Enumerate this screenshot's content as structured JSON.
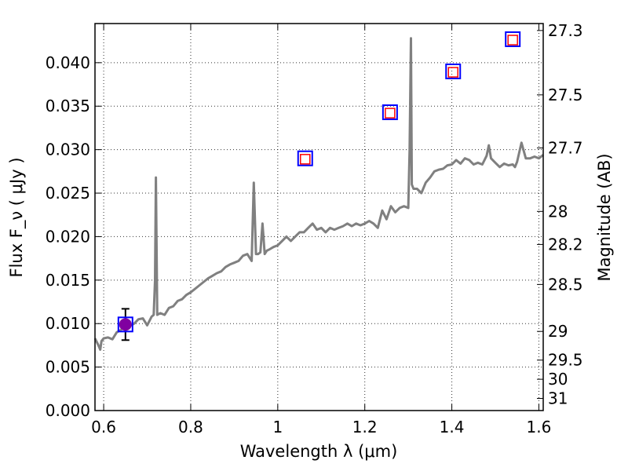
{
  "chart_data": {
    "type": "line",
    "title": "",
    "xlabel": "Wavelength  λ (μm)",
    "ylabel": "Flux  F_ν  ( μJy )",
    "y2label": "Magnitude (AB)",
    "xlim": [
      0.58,
      1.61
    ],
    "ylim": [
      0.0,
      0.0445
    ],
    "grid": true,
    "x_ticks": [
      0.6,
      0.8,
      1.0,
      1.2,
      1.4,
      1.6
    ],
    "x_tick_labels": [
      "0.6",
      "0.8",
      "1",
      "1.2",
      "1.4",
      "1.6"
    ],
    "y_ticks": [
      0.0,
      0.005,
      0.01,
      0.015,
      0.02,
      0.025,
      0.03,
      0.035,
      0.04
    ],
    "y_tick_labels": [
      "0.000",
      "0.005",
      "0.010",
      "0.015",
      "0.020",
      "0.025",
      "0.030",
      "0.035",
      "0.040"
    ],
    "y2_ticks": [
      {
        "label": "27.3",
        "flux": 0.0437
      },
      {
        "label": "27.5",
        "flux": 0.0363
      },
      {
        "label": "27.7",
        "flux": 0.0302
      },
      {
        "label": "28",
        "flux": 0.0229
      },
      {
        "label": "28.2",
        "flux": 0.0191
      },
      {
        "label": "28.5",
        "flux": 0.0145
      },
      {
        "label": "29",
        "flux": 0.0091
      },
      {
        "label": "29.5",
        "flux": 0.0058
      },
      {
        "label": "30",
        "flux": 0.0036
      },
      {
        "label": "31",
        "flux": 0.0014
      }
    ],
    "series": [
      {
        "type": "line",
        "color": "#808080",
        "x": [
          0.58,
          0.588,
          0.592,
          0.595,
          0.6,
          0.61,
          0.62,
          0.63,
          0.64,
          0.65,
          0.66,
          0.67,
          0.68,
          0.69,
          0.7,
          0.71,
          0.715,
          0.718,
          0.72,
          0.723,
          0.73,
          0.74,
          0.75,
          0.76,
          0.77,
          0.78,
          0.79,
          0.8,
          0.81,
          0.82,
          0.83,
          0.84,
          0.85,
          0.86,
          0.87,
          0.88,
          0.89,
          0.9,
          0.91,
          0.92,
          0.93,
          0.94,
          0.945,
          0.95,
          0.955,
          0.96,
          0.965,
          0.97,
          0.975,
          0.98,
          0.99,
          1.0,
          1.01,
          1.02,
          1.03,
          1.04,
          1.05,
          1.06,
          1.07,
          1.08,
          1.09,
          1.1,
          1.11,
          1.12,
          1.13,
          1.14,
          1.15,
          1.16,
          1.17,
          1.18,
          1.19,
          1.2,
          1.21,
          1.22,
          1.23,
          1.24,
          1.25,
          1.26,
          1.27,
          1.28,
          1.29,
          1.3,
          1.303,
          1.306,
          1.308,
          1.312,
          1.32,
          1.33,
          1.34,
          1.35,
          1.36,
          1.37,
          1.38,
          1.39,
          1.4,
          1.41,
          1.42,
          1.43,
          1.44,
          1.45,
          1.46,
          1.47,
          1.48,
          1.485,
          1.49,
          1.5,
          1.51,
          1.52,
          1.53,
          1.54,
          1.545,
          1.55,
          1.56,
          1.57,
          1.58,
          1.59,
          1.6,
          1.61
        ],
        "y": [
          0.0083,
          0.0075,
          0.007,
          0.008,
          0.0083,
          0.0084,
          0.0082,
          0.009,
          0.0093,
          0.01,
          0.0097,
          0.01,
          0.0105,
          0.0106,
          0.0098,
          0.0108,
          0.011,
          0.015,
          0.0268,
          0.011,
          0.0112,
          0.011,
          0.0118,
          0.012,
          0.0126,
          0.0128,
          0.0133,
          0.0136,
          0.014,
          0.0144,
          0.0148,
          0.0152,
          0.0155,
          0.0158,
          0.016,
          0.0165,
          0.0168,
          0.017,
          0.0172,
          0.0178,
          0.018,
          0.0172,
          0.0262,
          0.018,
          0.018,
          0.0182,
          0.0215,
          0.018,
          0.0184,
          0.0185,
          0.0188,
          0.019,
          0.0195,
          0.02,
          0.0195,
          0.02,
          0.0205,
          0.0205,
          0.021,
          0.0215,
          0.0208,
          0.021,
          0.0205,
          0.021,
          0.0208,
          0.021,
          0.0212,
          0.0215,
          0.0212,
          0.0215,
          0.0213,
          0.0215,
          0.0218,
          0.0215,
          0.021,
          0.023,
          0.022,
          0.0235,
          0.0228,
          0.0233,
          0.0235,
          0.0233,
          0.03,
          0.0428,
          0.026,
          0.0255,
          0.0255,
          0.025,
          0.0262,
          0.0268,
          0.0275,
          0.0277,
          0.0278,
          0.0282,
          0.0283,
          0.0288,
          0.0284,
          0.029,
          0.0288,
          0.0283,
          0.0285,
          0.0283,
          0.0293,
          0.0305,
          0.029,
          0.0285,
          0.028,
          0.0284,
          0.0282,
          0.0283,
          0.028,
          0.0286,
          0.0308,
          0.029,
          0.029,
          0.0292,
          0.029,
          0.0294
        ]
      },
      {
        "type": "scatter",
        "marker": "filled-circle",
        "color": "#8000a0",
        "x": [
          0.65
        ],
        "y": [
          0.0099
        ],
        "yerr": [
          0.0018
        ]
      },
      {
        "type": "scatter",
        "marker": "open-square",
        "color": "#0000ff",
        "x": [
          0.65,
          1.063,
          1.258,
          1.403,
          1.54
        ],
        "y": [
          0.0099,
          0.029,
          0.0343,
          0.039,
          0.0427
        ]
      },
      {
        "type": "scatter",
        "marker": "open-square-small",
        "color": "#ff0000",
        "x": [
          1.063,
          1.258,
          1.403,
          1.54
        ],
        "y": [
          0.0289,
          0.0342,
          0.0389,
          0.0426
        ]
      }
    ]
  }
}
